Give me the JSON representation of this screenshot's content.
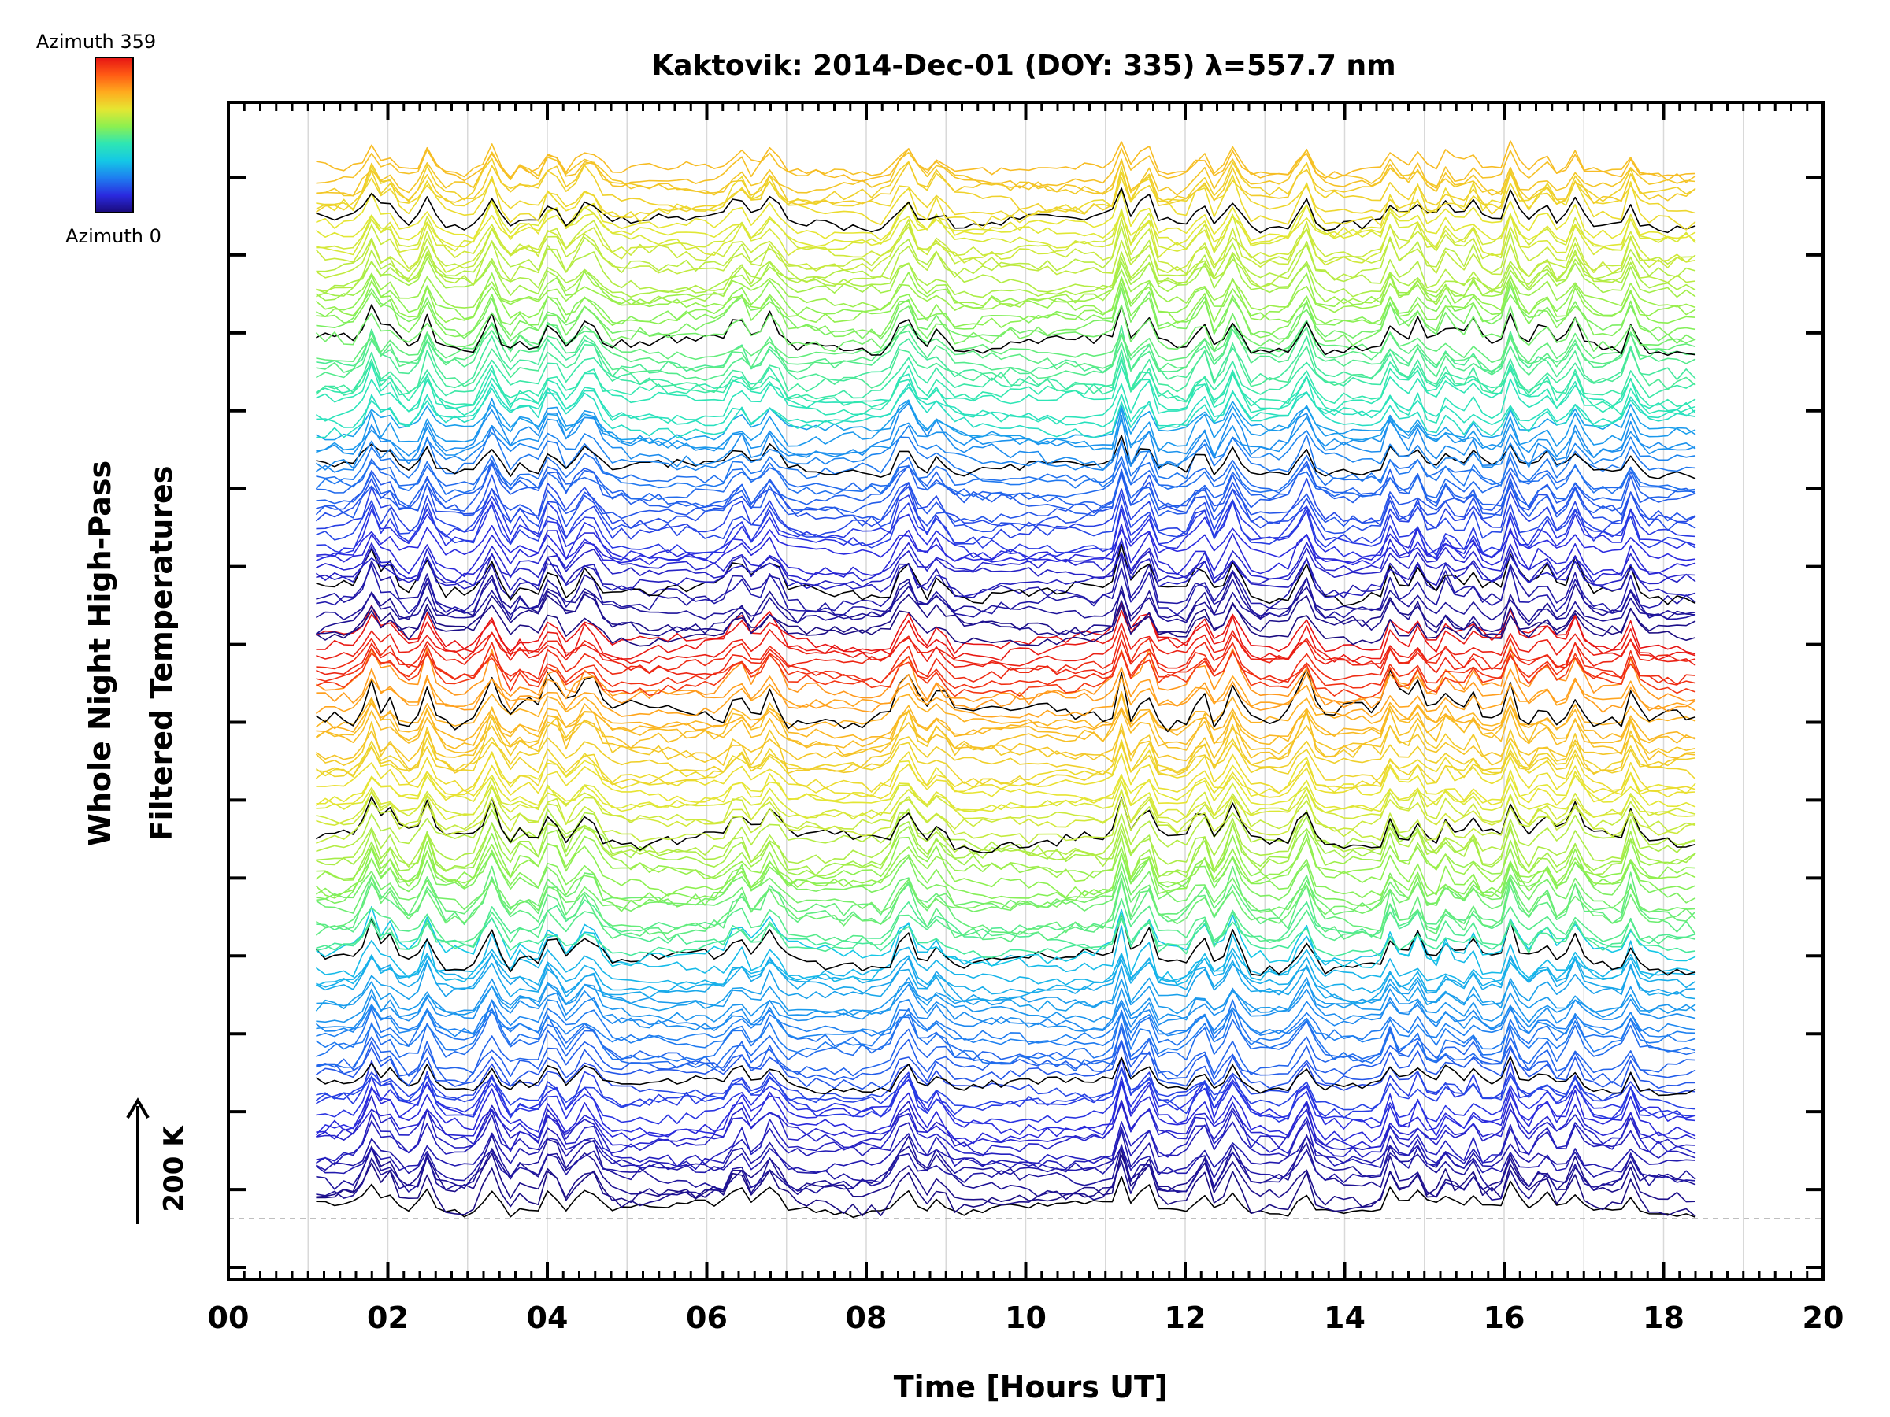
{
  "chart_data": {
    "type": "line",
    "title": "Kaktovik: 2014-Dec-01 (DOY: 335) λ=557.7 nm",
    "xlabel": "Time [Hours UT]",
    "ylabel": [
      "Whole Night High-Pass",
      "Filtered Temperatures"
    ],
    "xlim": [
      0,
      20
    ],
    "x_ticks": [
      "00",
      "02",
      "04",
      "06",
      "08",
      "10",
      "12",
      "14",
      "16",
      "18",
      "20"
    ],
    "x_tick_values": [
      0,
      2,
      4,
      6,
      8,
      10,
      12,
      14,
      16,
      18,
      20
    ],
    "vertical_gridlines_hours": [
      1,
      2,
      3,
      4,
      5,
      6,
      7,
      8,
      9,
      10,
      11,
      12,
      13,
      14,
      15,
      16,
      17,
      18,
      19
    ],
    "data_time_range_hours": [
      1.1,
      18.4
    ],
    "series_count": 144,
    "series_color_by": "azimuth",
    "colorbar": {
      "top_label": "Azimuth 359",
      "bottom_label": "Azimuth 0",
      "colors": [
        "#1a0a7a",
        "#2a2adf",
        "#1e7df0",
        "#14c8e6",
        "#2ee6b4",
        "#8cf050",
        "#e6e632",
        "#ffaa1e",
        "#ff5a14",
        "#e61414"
      ]
    },
    "scale_bar": {
      "label": "200 K",
      "value_kelvin": 200
    },
    "baseline": "dashed",
    "grid": true
  }
}
